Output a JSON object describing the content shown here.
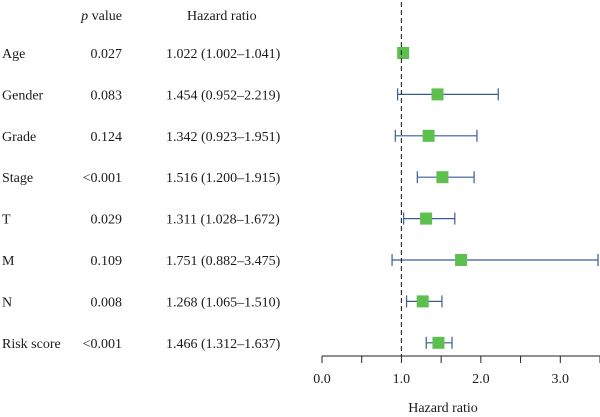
{
  "chart_data": {
    "type": "forest",
    "title": "",
    "headers": {
      "pvalue_italic": "p",
      "pvalue_rest": " value",
      "hr": "Hazard ratio"
    },
    "xlabel": "Hazard ratio",
    "xlim": [
      0.0,
      3.5
    ],
    "xticks": [
      0.0,
      0.5,
      1.0,
      1.5,
      2.0,
      2.5,
      3.0,
      3.5
    ],
    "xtick_labels": [
      "0.0",
      "",
      "1.0",
      "",
      "2.0",
      "",
      "3.0",
      ""
    ],
    "reference_line": 1.0,
    "colors": {
      "marker": "#5cbf4e",
      "ci": "#3b5b9a",
      "axis": "#222222",
      "ref": "#333333"
    },
    "rows": [
      {
        "variable": "Age",
        "pvalue": "0.027",
        "hr_text": "1.022 (1.002–1.041)",
        "hr": 1.022,
        "lower": 1.002,
        "upper": 1.041
      },
      {
        "variable": "Gender",
        "pvalue": "0.083",
        "hr_text": "1.454 (0.952–2.219)",
        "hr": 1.454,
        "lower": 0.952,
        "upper": 2.219
      },
      {
        "variable": "Grade",
        "pvalue": "0.124",
        "hr_text": "1.342 (0.923–1.951)",
        "hr": 1.342,
        "lower": 0.923,
        "upper": 1.951
      },
      {
        "variable": "Stage",
        "pvalue": "<0.001",
        "hr_text": "1.516 (1.200–1.915)",
        "hr": 1.516,
        "lower": 1.2,
        "upper": 1.915
      },
      {
        "variable": "T",
        "pvalue": "0.029",
        "hr_text": "1.311 (1.028–1.672)",
        "hr": 1.311,
        "lower": 1.028,
        "upper": 1.672
      },
      {
        "variable": "M",
        "pvalue": "0.109",
        "hr_text": "1.751 (0.882–3.475)",
        "hr": 1.751,
        "lower": 0.882,
        "upper": 3.475
      },
      {
        "variable": "N",
        "pvalue": "0.008",
        "hr_text": "1.268 (1.065–1.510)",
        "hr": 1.268,
        "lower": 1.065,
        "upper": 1.51
      },
      {
        "variable": "Risk score",
        "pvalue": "<0.001",
        "hr_text": "1.466 (1.312–1.637)",
        "hr": 1.466,
        "lower": 1.312,
        "upper": 1.637
      }
    ]
  }
}
